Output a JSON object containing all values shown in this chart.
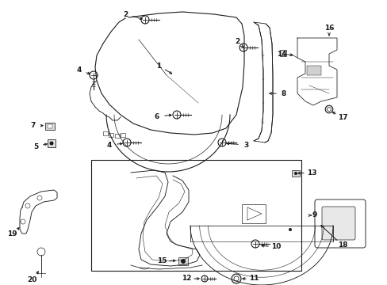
{
  "bg_color": "#ffffff",
  "fig_width": 4.89,
  "fig_height": 3.6,
  "dpi": 100,
  "line_color": "#1a1a1a",
  "lw": 0.8,
  "label_fontsize": 6.5
}
